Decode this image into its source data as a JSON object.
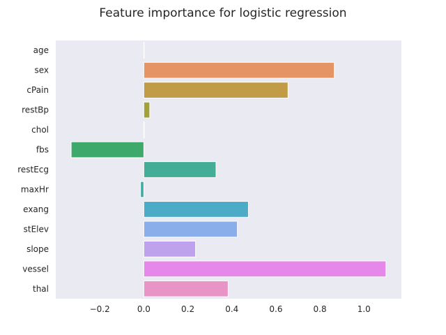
{
  "chart_data": {
    "type": "bar",
    "orientation": "horizontal",
    "title": "Feature importance for logistic regression",
    "xlabel": "",
    "ylabel": "",
    "categories": [
      "age",
      "sex",
      "cPain",
      "restBp",
      "chol",
      "fbs",
      "restEcg",
      "maxHr",
      "exang",
      "stElev",
      "slope",
      "vessel",
      "thal"
    ],
    "values": [
      0.0,
      0.865,
      0.655,
      0.027,
      0.002,
      -0.33,
      0.328,
      -0.015,
      0.475,
      0.425,
      0.235,
      1.1,
      0.383
    ],
    "colors": [
      "#e377c2",
      "#e59466",
      "#c29b47",
      "#a3a23a",
      "#7eae3b",
      "#3daa6c",
      "#43ad97",
      "#45aaa9",
      "#4cabc6",
      "#8aaeea",
      "#bfa2ec",
      "#e588ea",
      "#e994c6"
    ],
    "xticks": [
      -0.2,
      0.0,
      0.2,
      0.4,
      0.6,
      0.8,
      1.0
    ],
    "xtick_labels": [
      "−0.2",
      "0.0",
      "0.2",
      "0.4",
      "0.6",
      "0.8",
      "1.0"
    ],
    "xlim": [
      -0.4,
      1.17
    ],
    "grid": false,
    "background_color": "#eaeaf2",
    "baseline_color": "#ffffff"
  }
}
